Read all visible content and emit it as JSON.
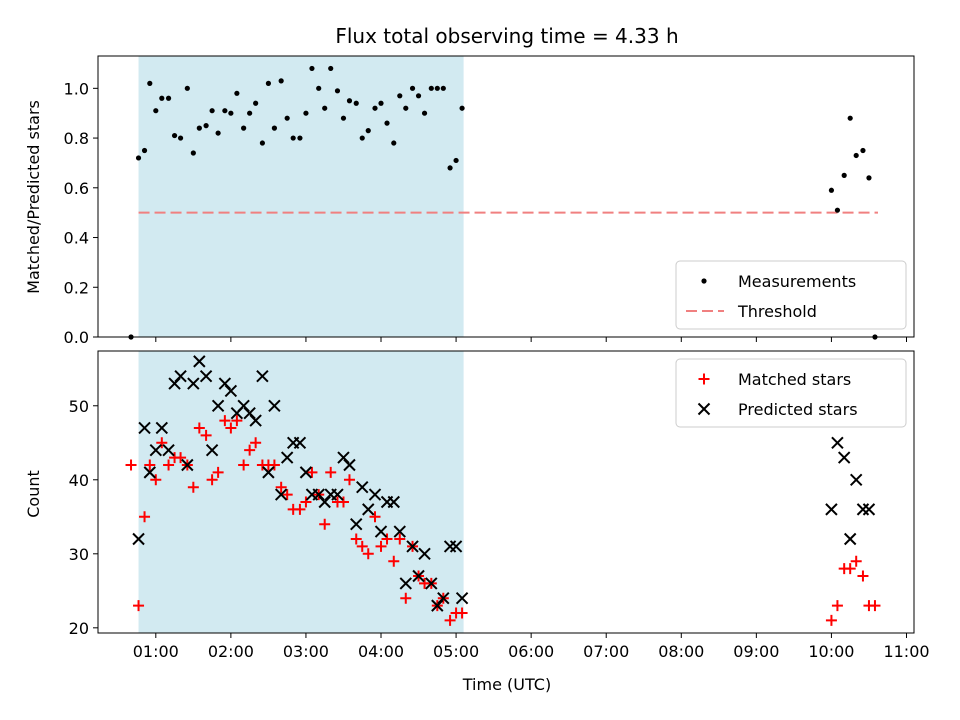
{
  "chart_data": [
    {
      "type": "scatter",
      "title": "Flux total observing time = 4.33 h",
      "xlabel": "",
      "ylabel": "Matched/Predicted stars",
      "xlim": [
        0.23,
        11.1
      ],
      "ylim": [
        0.0,
        1.13
      ],
      "yticks": [
        0.0,
        0.2,
        0.4,
        0.6,
        0.8,
        1.0
      ],
      "ytick_labels": [
        "0.0",
        "0.2",
        "0.4",
        "0.6",
        "0.8",
        "1.0"
      ],
      "shaded_span": [
        0.77,
        5.1
      ],
      "shaded_color": "#add8e6",
      "legend_position": "lower right",
      "threshold": {
        "name": "Threshold",
        "y": 0.5,
        "x": [
          0.77,
          10.62
        ],
        "color": "#f08080",
        "style": "dashed"
      },
      "series": [
        {
          "name": "Measurements",
          "marker": "dot",
          "color": "#000000",
          "points": [
            [
              0.67,
              0.0
            ],
            [
              0.77,
              0.72
            ],
            [
              0.85,
              0.75
            ],
            [
              0.92,
              1.02
            ],
            [
              1.0,
              0.91
            ],
            [
              1.08,
              0.96
            ],
            [
              1.17,
              0.96
            ],
            [
              1.25,
              0.81
            ],
            [
              1.33,
              0.8
            ],
            [
              1.42,
              1.0
            ],
            [
              1.5,
              0.74
            ],
            [
              1.58,
              0.84
            ],
            [
              1.67,
              0.85
            ],
            [
              1.75,
              0.91
            ],
            [
              1.83,
              0.82
            ],
            [
              1.92,
              0.91
            ],
            [
              2.0,
              0.9
            ],
            [
              2.08,
              0.98
            ],
            [
              2.17,
              0.84
            ],
            [
              2.25,
              0.9
            ],
            [
              2.33,
              0.94
            ],
            [
              2.42,
              0.78
            ],
            [
              2.5,
              1.02
            ],
            [
              2.58,
              0.84
            ],
            [
              2.67,
              1.03
            ],
            [
              2.75,
              0.88
            ],
            [
              2.83,
              0.8
            ],
            [
              2.92,
              0.8
            ],
            [
              3.0,
              0.9
            ],
            [
              3.08,
              1.08
            ],
            [
              3.17,
              1.0
            ],
            [
              3.25,
              0.92
            ],
            [
              3.33,
              1.08
            ],
            [
              3.42,
              0.99
            ],
            [
              3.5,
              0.88
            ],
            [
              3.58,
              0.95
            ],
            [
              3.67,
              0.94
            ],
            [
              3.75,
              0.8
            ],
            [
              3.83,
              0.83
            ],
            [
              3.92,
              0.92
            ],
            [
              4.0,
              0.94
            ],
            [
              4.08,
              0.86
            ],
            [
              4.17,
              0.78
            ],
            [
              4.25,
              0.97
            ],
            [
              4.33,
              0.92
            ],
            [
              4.42,
              1.0
            ],
            [
              4.5,
              0.97
            ],
            [
              4.58,
              0.9
            ],
            [
              4.67,
              1.0
            ],
            [
              4.75,
              1.0
            ],
            [
              4.83,
              1.0
            ],
            [
              4.92,
              0.68
            ],
            [
              5.0,
              0.71
            ],
            [
              5.08,
              0.92
            ],
            [
              10.0,
              0.59
            ],
            [
              10.08,
              0.51
            ],
            [
              10.17,
              0.65
            ],
            [
              10.25,
              0.88
            ],
            [
              10.33,
              0.73
            ],
            [
              10.42,
              0.75
            ],
            [
              10.5,
              0.64
            ],
            [
              10.58,
              0.0
            ]
          ]
        }
      ]
    },
    {
      "type": "scatter",
      "title": "",
      "xlabel": "Time (UTC)",
      "ylabel": "Count",
      "xlim": [
        0.23,
        11.1
      ],
      "ylim": [
        19.3,
        57.4
      ],
      "xticks": [
        1,
        2,
        3,
        4,
        5,
        6,
        7,
        8,
        9,
        10,
        11
      ],
      "xtick_labels": [
        "01:00",
        "02:00",
        "03:00",
        "04:00",
        "05:00",
        "06:00",
        "07:00",
        "08:00",
        "09:00",
        "10:00",
        "11:00"
      ],
      "yticks": [
        20,
        30,
        40,
        50
      ],
      "ytick_labels": [
        "20",
        "30",
        "40",
        "50"
      ],
      "shaded_span": [
        0.77,
        5.1
      ],
      "shaded_color": "#add8e6",
      "legend_position": "upper right",
      "series": [
        {
          "name": "Matched stars",
          "marker": "plus",
          "color": "#ff0000",
          "points": [
            [
              0.67,
              42
            ],
            [
              0.77,
              23
            ],
            [
              0.85,
              35
            ],
            [
              0.92,
              42
            ],
            [
              1.0,
              40
            ],
            [
              1.08,
              45
            ],
            [
              1.17,
              42
            ],
            [
              1.25,
              43
            ],
            [
              1.33,
              43
            ],
            [
              1.42,
              42
            ],
            [
              1.5,
              39
            ],
            [
              1.58,
              47
            ],
            [
              1.67,
              46
            ],
            [
              1.75,
              40
            ],
            [
              1.83,
              41
            ],
            [
              1.92,
              48
            ],
            [
              2.0,
              47
            ],
            [
              2.08,
              48
            ],
            [
              2.17,
              42
            ],
            [
              2.25,
              44
            ],
            [
              2.33,
              45
            ],
            [
              2.42,
              42
            ],
            [
              2.5,
              42
            ],
            [
              2.58,
              42
            ],
            [
              2.67,
              39
            ],
            [
              2.75,
              38
            ],
            [
              2.83,
              36
            ],
            [
              2.92,
              36
            ],
            [
              3.0,
              37
            ],
            [
              3.08,
              41
            ],
            [
              3.17,
              38
            ],
            [
              3.25,
              34
            ],
            [
              3.33,
              41
            ],
            [
              3.42,
              37
            ],
            [
              3.5,
              37
            ],
            [
              3.58,
              40
            ],
            [
              3.67,
              32
            ],
            [
              3.75,
              31
            ],
            [
              3.83,
              30
            ],
            [
              3.92,
              35
            ],
            [
              4.0,
              31
            ],
            [
              4.08,
              32
            ],
            [
              4.17,
              29
            ],
            [
              4.25,
              32
            ],
            [
              4.33,
              24
            ],
            [
              4.42,
              31
            ],
            [
              4.5,
              27
            ],
            [
              4.58,
              26
            ],
            [
              4.67,
              26
            ],
            [
              4.75,
              23
            ],
            [
              4.83,
              24
            ],
            [
              4.92,
              21
            ],
            [
              5.0,
              22
            ],
            [
              5.08,
              22
            ],
            [
              10.0,
              21
            ],
            [
              10.08,
              23
            ],
            [
              10.17,
              28
            ],
            [
              10.25,
              28
            ],
            [
              10.33,
              29
            ],
            [
              10.42,
              27
            ],
            [
              10.5,
              23
            ],
            [
              10.58,
              23
            ]
          ]
        },
        {
          "name": "Predicted stars",
          "marker": "x",
          "color": "#000000",
          "points": [
            [
              0.77,
              32
            ],
            [
              0.85,
              47
            ],
            [
              0.92,
              41
            ],
            [
              1.0,
              44
            ],
            [
              1.08,
              47
            ],
            [
              1.17,
              44
            ],
            [
              1.25,
              53
            ],
            [
              1.33,
              54
            ],
            [
              1.42,
              42
            ],
            [
              1.5,
              53
            ],
            [
              1.58,
              56
            ],
            [
              1.67,
              54
            ],
            [
              1.75,
              44
            ],
            [
              1.83,
              50
            ],
            [
              1.92,
              53
            ],
            [
              2.0,
              52
            ],
            [
              2.08,
              49
            ],
            [
              2.17,
              50
            ],
            [
              2.25,
              49
            ],
            [
              2.33,
              48
            ],
            [
              2.42,
              54
            ],
            [
              2.5,
              41
            ],
            [
              2.58,
              50
            ],
            [
              2.67,
              38
            ],
            [
              2.75,
              43
            ],
            [
              2.83,
              45
            ],
            [
              2.92,
              45
            ],
            [
              3.0,
              41
            ],
            [
              3.08,
              38
            ],
            [
              3.17,
              38
            ],
            [
              3.25,
              37
            ],
            [
              3.33,
              38
            ],
            [
              3.42,
              38
            ],
            [
              3.5,
              43
            ],
            [
              3.58,
              42
            ],
            [
              3.67,
              34
            ],
            [
              3.75,
              39
            ],
            [
              3.83,
              36
            ],
            [
              3.92,
              38
            ],
            [
              4.0,
              33
            ],
            [
              4.08,
              37
            ],
            [
              4.17,
              37
            ],
            [
              4.25,
              33
            ],
            [
              4.33,
              26
            ],
            [
              4.42,
              31
            ],
            [
              4.5,
              27
            ],
            [
              4.58,
              30
            ],
            [
              4.67,
              26
            ],
            [
              4.75,
              23
            ],
            [
              4.83,
              24
            ],
            [
              4.92,
              31
            ],
            [
              5.0,
              31
            ],
            [
              5.08,
              24
            ],
            [
              10.0,
              36
            ],
            [
              10.08,
              45
            ],
            [
              10.17,
              43
            ],
            [
              10.25,
              32
            ],
            [
              10.33,
              40
            ],
            [
              10.42,
              36
            ],
            [
              10.5,
              36
            ]
          ]
        }
      ]
    }
  ]
}
